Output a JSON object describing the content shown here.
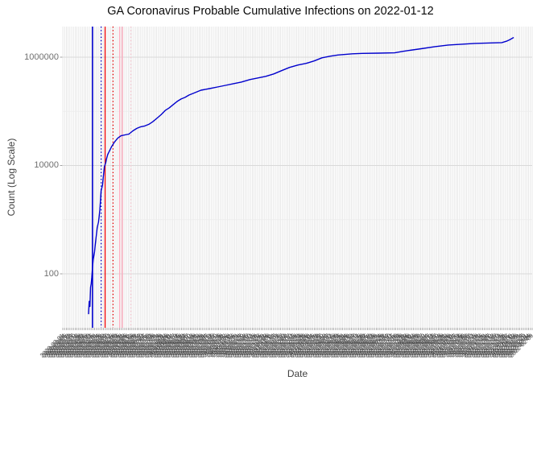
{
  "title": "GA Coronavirus Probable Cumulative Infections on 2022-01-12",
  "x_axis": {
    "title": "Date",
    "label_format": "YYYY-MM-DD",
    "labels_start": "2020-03-01",
    "labels_end": "2022-02-09",
    "labels_count": 266,
    "labels_angle_deg": 45
  },
  "y_axis": {
    "title": "Count (Log Scale)",
    "scale": "log10",
    "tick_values": [
      1000000,
      10000,
      100
    ],
    "tick_labels": [
      "1000000",
      "10000",
      "100"
    ],
    "minor_tick_values": [
      100000,
      1000
    ]
  },
  "colors": {
    "series_line": "#0000CD",
    "event_blue": "#0000CD",
    "event_red": "#EE0000",
    "event_pink": "#FFAEC0",
    "event_pink_light": "#FFCCD6",
    "grid_vertical": "#DEDEDE",
    "grid_major": "#D9D9D9",
    "grid_minor": "#ECECEC",
    "tick_mark": "#999999",
    "text_dark": "#0a0a0a",
    "text_gray": "#6f6f6f"
  },
  "chart_data": {
    "type": "line",
    "title": "GA Coronavirus Probable Cumulative Infections on 2022-01-12",
    "xlabel": "Date",
    "ylabel": "Count (Log Scale)",
    "x_range": [
      "2020-03-01",
      "2022-02-09"
    ],
    "ylim": [
      10,
      3000000
    ],
    "grid": true,
    "legend": false,
    "series": [
      {
        "name": "probable-cumulative-infections",
        "color": "#0000CD",
        "points": [
          [
            "2020-04-09",
            18
          ],
          [
            "2020-04-10",
            31
          ],
          [
            "2020-04-11",
            25
          ],
          [
            "2020-04-12",
            56
          ],
          [
            "2020-04-13",
            66
          ],
          [
            "2020-04-14",
            87
          ],
          [
            "2020-04-15",
            136
          ],
          [
            "2020-04-16",
            185
          ],
          [
            "2020-04-18",
            252
          ],
          [
            "2020-04-19",
            331
          ],
          [
            "2020-04-20",
            434
          ],
          [
            "2020-04-21",
            553
          ],
          [
            "2020-04-22",
            705
          ],
          [
            "2020-04-24",
            899
          ],
          [
            "2020-04-25",
            1146
          ],
          [
            "2020-04-26",
            1503
          ],
          [
            "2020-04-27",
            2261
          ],
          [
            "2020-04-28",
            3402
          ],
          [
            "2020-04-30",
            4334
          ],
          [
            "2020-05-01",
            5699
          ],
          [
            "2020-05-02",
            7493
          ],
          [
            "2020-05-03",
            9540
          ],
          [
            "2020-05-05",
            11340
          ],
          [
            "2020-05-06",
            13040
          ],
          [
            "2020-05-08",
            16000
          ],
          [
            "2020-05-11",
            19000
          ],
          [
            "2020-05-14",
            22600
          ],
          [
            "2020-05-18",
            26900
          ],
          [
            "2020-05-23",
            31900
          ],
          [
            "2020-05-28",
            35400
          ],
          [
            "2020-06-03",
            36700
          ],
          [
            "2020-06-09",
            38000
          ],
          [
            "2020-06-15",
            43600
          ],
          [
            "2020-06-21",
            48500
          ],
          [
            "2020-06-27",
            51900
          ],
          [
            "2020-07-03",
            53700
          ],
          [
            "2020-07-09",
            57600
          ],
          [
            "2020-07-15",
            64100
          ],
          [
            "2020-07-21",
            73800
          ],
          [
            "2020-07-28",
            87700
          ],
          [
            "2020-08-03",
            104000
          ],
          [
            "2020-08-09",
            116000
          ],
          [
            "2020-08-15",
            133000
          ],
          [
            "2020-08-21",
            152600
          ],
          [
            "2020-08-27",
            169000
          ],
          [
            "2020-09-02",
            181000
          ],
          [
            "2020-09-08",
            200000
          ],
          [
            "2020-09-14",
            214000
          ],
          [
            "2020-09-20",
            229500
          ],
          [
            "2020-09-26",
            246000
          ],
          [
            "2020-10-09",
            263000
          ],
          [
            "2020-10-21",
            282000
          ],
          [
            "2020-11-02",
            302000
          ],
          [
            "2020-11-14",
            324000
          ],
          [
            "2020-11-26",
            347000
          ],
          [
            "2020-12-09",
            386000
          ],
          [
            "2020-12-21",
            414000
          ],
          [
            "2021-01-02",
            443000
          ],
          [
            "2021-01-14",
            491000
          ],
          [
            "2021-01-26",
            564000
          ],
          [
            "2021-02-07",
            647000
          ],
          [
            "2021-02-20",
            717000
          ],
          [
            "2021-03-04",
            768000
          ],
          [
            "2021-03-16",
            852000
          ],
          [
            "2021-03-28",
            974000
          ],
          [
            "2021-04-09",
            1043000
          ],
          [
            "2021-04-21",
            1096000
          ],
          [
            "2021-05-13",
            1153000
          ],
          [
            "2021-05-28",
            1173000
          ],
          [
            "2021-06-21",
            1185000
          ],
          [
            "2021-07-16",
            1205000
          ],
          [
            "2021-07-28",
            1279000
          ],
          [
            "2021-08-05",
            1323000
          ],
          [
            "2021-08-25",
            1432000
          ],
          [
            "2021-09-15",
            1565000
          ],
          [
            "2021-10-05",
            1676000
          ],
          [
            "2021-10-25",
            1734000
          ],
          [
            "2021-11-14",
            1794000
          ],
          [
            "2021-12-09",
            1831000
          ],
          [
            "2021-12-25",
            1856000
          ],
          [
            "2022-01-02",
            1992000
          ],
          [
            "2022-01-06",
            2096000
          ],
          [
            "2022-01-12",
            2315000
          ]
        ]
      }
    ],
    "event_lines": [
      {
        "date": "2020-04-15",
        "color": "#0000CD",
        "style": "solid",
        "width": 1.6
      },
      {
        "date": "2020-04-28",
        "color": "#0000CD",
        "style": "dotted",
        "width": 1.3
      },
      {
        "date": "2020-05-04",
        "color": "#EE0000",
        "style": "solid",
        "width": 1.3
      },
      {
        "date": "2020-05-16",
        "color": "#EE0000",
        "style": "dotted",
        "width": 1.3
      },
      {
        "date": "2020-05-26",
        "color": "#FFAEC0",
        "style": "solid",
        "width": 1.4
      },
      {
        "date": "2020-05-30",
        "color": "#FFAEC0",
        "style": "solid",
        "width": 1.4
      },
      {
        "date": "2020-06-12",
        "color": "#FFCCD6",
        "style": "dotted",
        "width": 1.3
      }
    ]
  }
}
